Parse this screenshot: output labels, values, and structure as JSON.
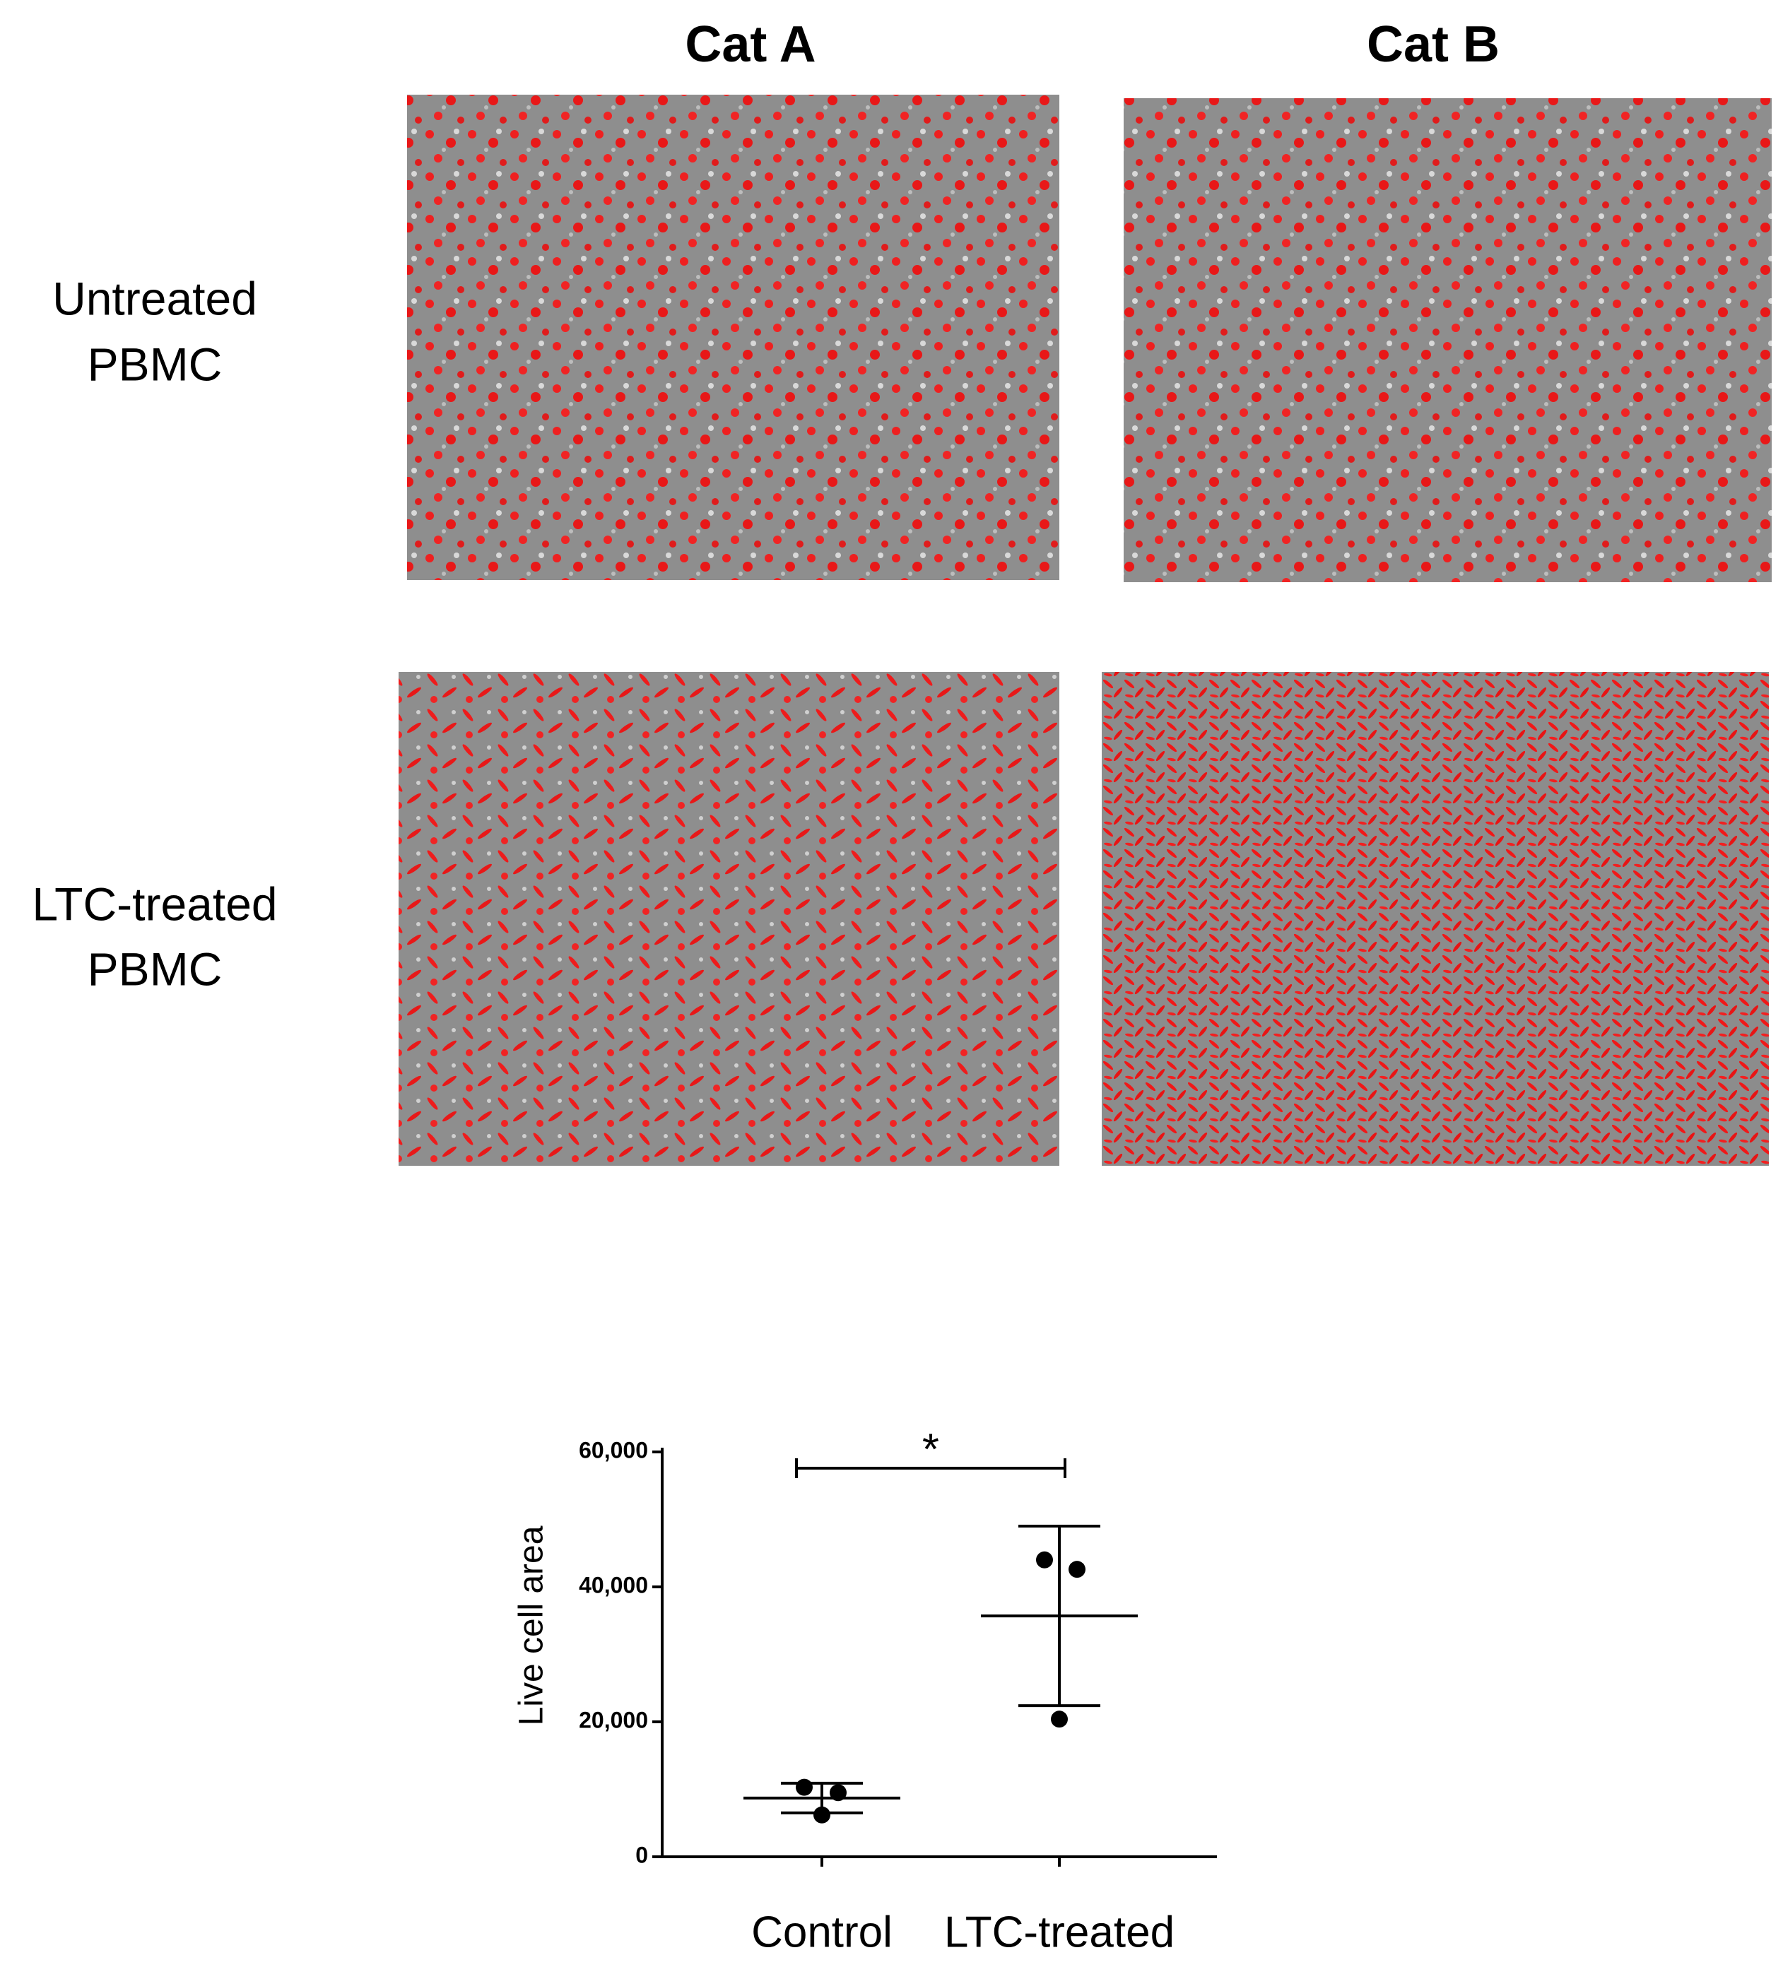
{
  "columns": [
    "Cat A",
    "Cat B"
  ],
  "rows": [
    [
      "Untreated",
      "PBMC"
    ],
    [
      "LTC-treated",
      "PBMC"
    ]
  ],
  "chart_data": {
    "type": "dot",
    "y_label": "Live cell area",
    "categories": [
      "Control",
      "LTC-treated"
    ],
    "points": [
      [
        10300,
        9500,
        6200
      ],
      [
        44000,
        42600,
        20400
      ]
    ],
    "mean": [
      8700,
      35700
    ],
    "sd": [
      2200,
      13300
    ],
    "ylim": [
      0,
      60000
    ],
    "yticks": [
      0,
      {
        "value": 20000,
        "label": "20,000"
      },
      {
        "value": 40000,
        "label": "40,000"
      },
      {
        "value": 60000,
        "label": "60,000"
      }
    ],
    "annotations": [
      {
        "text": "*",
        "between": [
          0,
          1
        ]
      }
    ]
  }
}
